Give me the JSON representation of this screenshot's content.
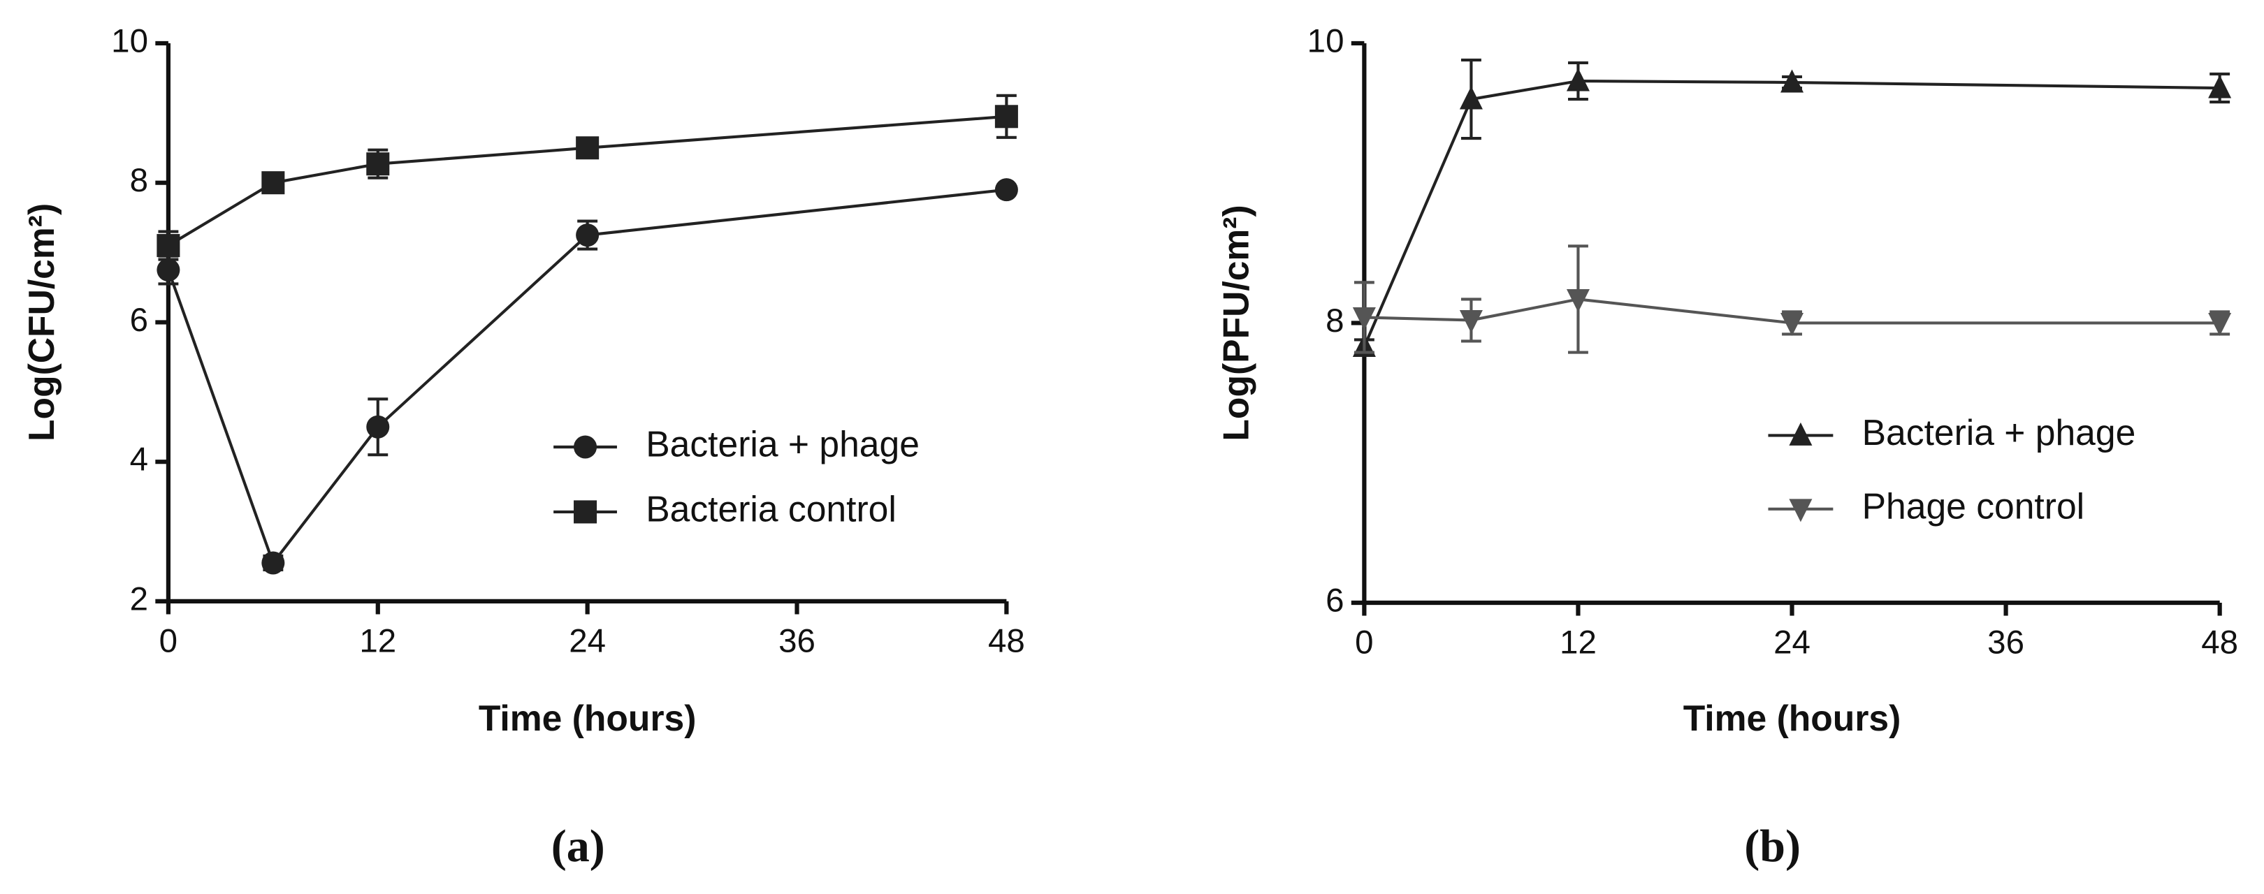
{
  "chart_data": [
    {
      "type": "line",
      "panel_label": "(a)",
      "x_label": "Time (hours)",
      "y_label": "Log(CFU/cm²)",
      "x": [
        0,
        6,
        12,
        24,
        48
      ],
      "xlim": [
        0,
        48
      ],
      "xticks": [
        0,
        12,
        24,
        36,
        48
      ],
      "ylim": [
        2,
        10
      ],
      "yticks": [
        2,
        4,
        6,
        8,
        10
      ],
      "series": [
        {
          "name": "Bacteria + phage",
          "color": "#222222",
          "marker": "circle",
          "values": [
            6.75,
            2.55,
            4.5,
            7.25,
            7.9
          ],
          "errors": [
            0.2,
            0.1,
            0.4,
            0.2,
            0.05
          ]
        },
        {
          "name": "Bacteria control",
          "color": "#222222",
          "marker": "square",
          "values": [
            7.1,
            8.0,
            8.27,
            8.5,
            8.95
          ],
          "errors": [
            0.2,
            0.1,
            0.2,
            0.1,
            0.3
          ]
        }
      ]
    },
    {
      "type": "line",
      "panel_label": "(b)",
      "x_label": "Time (hours)",
      "y_label": "Log(PFU/cm²)",
      "x": [
        0,
        6,
        12,
        24,
        48
      ],
      "xlim": [
        0,
        48
      ],
      "xticks": [
        0,
        12,
        24,
        36,
        48
      ],
      "ylim": [
        6,
        10
      ],
      "yticks": [
        6,
        8,
        10
      ],
      "series": [
        {
          "name": "Bacteria + phage",
          "color": "#222222",
          "marker": "triangle-up",
          "values": [
            7.83,
            9.6,
            9.73,
            9.72,
            9.68
          ],
          "errors": [
            0.05,
            0.28,
            0.13,
            0.04,
            0.1
          ]
        },
        {
          "name": "Phage control",
          "color": "#555555",
          "marker": "triangle-down",
          "values": [
            8.04,
            8.02,
            8.17,
            8.0,
            8.0
          ],
          "errors": [
            0.25,
            0.15,
            0.38,
            0.08,
            0.08
          ]
        }
      ]
    }
  ]
}
